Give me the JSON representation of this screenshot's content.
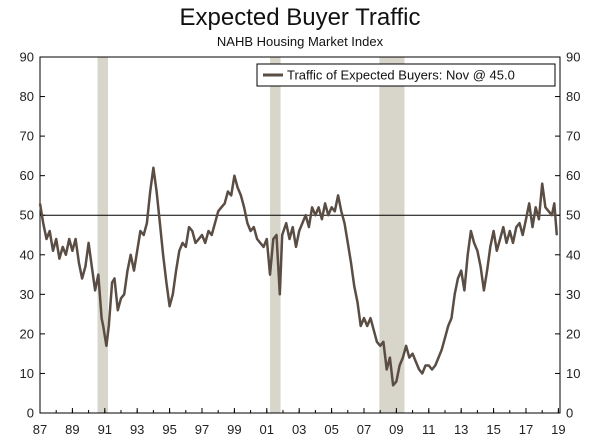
{
  "chart_data": {
    "type": "line",
    "title": "Expected Buyer Traffic",
    "subtitle": "NAHB Housing Market Index",
    "xlim": [
      1987.0,
      2019.1
    ],
    "ylim": [
      0,
      90
    ],
    "y_ticks": [
      0,
      10,
      20,
      30,
      40,
      50,
      60,
      70,
      80,
      90
    ],
    "x_ticks": [
      {
        "value": 1987,
        "label": "87"
      },
      {
        "value": 1989,
        "label": "89"
      },
      {
        "value": 1991,
        "label": "91"
      },
      {
        "value": 1993,
        "label": "93"
      },
      {
        "value": 1995,
        "label": "95"
      },
      {
        "value": 1997,
        "label": "97"
      },
      {
        "value": 1999,
        "label": "99"
      },
      {
        "value": 2001,
        "label": "01"
      },
      {
        "value": 2003,
        "label": "03"
      },
      {
        "value": 2005,
        "label": "05"
      },
      {
        "value": 2007,
        "label": "07"
      },
      {
        "value": 2009,
        "label": "09"
      },
      {
        "value": 2011,
        "label": "11"
      },
      {
        "value": 2013,
        "label": "13"
      },
      {
        "value": 2015,
        "label": "15"
      },
      {
        "value": 2017,
        "label": "17"
      },
      {
        "value": 2019,
        "label": "19"
      }
    ],
    "reference_line": 50,
    "recessions": [
      [
        1990.55,
        1991.2
      ],
      [
        2001.2,
        2001.85
      ],
      [
        2007.95,
        2009.5
      ]
    ],
    "legend": {
      "label": "Traffic of Expected Buyers: Nov @ 45.0",
      "position": "top-right"
    },
    "colors": {
      "line": "#5a4d44",
      "recession": "#d8d5cb",
      "reference": "#000000"
    },
    "series": [
      {
        "name": "Traffic of Expected Buyers: Nov @ 45.0",
        "points": [
          [
            1987.0,
            53
          ],
          [
            1987.2,
            48
          ],
          [
            1987.4,
            44
          ],
          [
            1987.6,
            46
          ],
          [
            1987.8,
            41
          ],
          [
            1988.0,
            44
          ],
          [
            1988.2,
            39
          ],
          [
            1988.4,
            42
          ],
          [
            1988.6,
            40
          ],
          [
            1988.8,
            44
          ],
          [
            1989.0,
            41
          ],
          [
            1989.2,
            44
          ],
          [
            1989.4,
            38
          ],
          [
            1989.6,
            34
          ],
          [
            1989.8,
            37
          ],
          [
            1990.0,
            43
          ],
          [
            1990.2,
            37
          ],
          [
            1990.4,
            31
          ],
          [
            1990.6,
            35
          ],
          [
            1990.8,
            24
          ],
          [
            1990.9,
            22
          ],
          [
            1991.1,
            17
          ],
          [
            1991.25,
            22
          ],
          [
            1991.45,
            33
          ],
          [
            1991.6,
            34
          ],
          [
            1991.8,
            26
          ],
          [
            1992.0,
            29
          ],
          [
            1992.2,
            30
          ],
          [
            1992.4,
            36
          ],
          [
            1992.6,
            40
          ],
          [
            1992.8,
            36
          ],
          [
            1993.0,
            41
          ],
          [
            1993.2,
            46
          ],
          [
            1993.4,
            45
          ],
          [
            1993.6,
            48
          ],
          [
            1993.8,
            56
          ],
          [
            1994.0,
            62
          ],
          [
            1994.2,
            56
          ],
          [
            1994.4,
            48
          ],
          [
            1994.6,
            40
          ],
          [
            1994.8,
            33
          ],
          [
            1995.0,
            27
          ],
          [
            1995.2,
            30
          ],
          [
            1995.4,
            36
          ],
          [
            1995.6,
            41
          ],
          [
            1995.8,
            43
          ],
          [
            1996.0,
            42
          ],
          [
            1996.2,
            47
          ],
          [
            1996.4,
            46
          ],
          [
            1996.6,
            43
          ],
          [
            1996.8,
            44
          ],
          [
            1997.0,
            45
          ],
          [
            1997.2,
            43
          ],
          [
            1997.4,
            46
          ],
          [
            1997.6,
            45
          ],
          [
            1997.8,
            48
          ],
          [
            1998.0,
            51
          ],
          [
            1998.2,
            52
          ],
          [
            1998.4,
            53
          ],
          [
            1998.6,
            56
          ],
          [
            1998.8,
            55
          ],
          [
            1999.0,
            60
          ],
          [
            1999.2,
            57
          ],
          [
            1999.4,
            55
          ],
          [
            1999.6,
            52
          ],
          [
            1999.8,
            48
          ],
          [
            2000.0,
            46
          ],
          [
            2000.2,
            47
          ],
          [
            2000.4,
            44
          ],
          [
            2000.6,
            43
          ],
          [
            2000.8,
            42
          ],
          [
            2001.0,
            44
          ],
          [
            2001.2,
            35
          ],
          [
            2001.4,
            44
          ],
          [
            2001.6,
            45
          ],
          [
            2001.8,
            30
          ],
          [
            2001.95,
            45
          ],
          [
            2002.2,
            48
          ],
          [
            2002.4,
            44
          ],
          [
            2002.6,
            47
          ],
          [
            2002.8,
            42
          ],
          [
            2003.0,
            46
          ],
          [
            2003.2,
            48
          ],
          [
            2003.4,
            50
          ],
          [
            2003.6,
            47
          ],
          [
            2003.8,
            52
          ],
          [
            2004.0,
            50
          ],
          [
            2004.2,
            52
          ],
          [
            2004.4,
            49
          ],
          [
            2004.6,
            53
          ],
          [
            2004.8,
            50
          ],
          [
            2005.0,
            52
          ],
          [
            2005.2,
            51
          ],
          [
            2005.4,
            55
          ],
          [
            2005.6,
            51
          ],
          [
            2005.8,
            48
          ],
          [
            2006.0,
            43
          ],
          [
            2006.2,
            38
          ],
          [
            2006.4,
            32
          ],
          [
            2006.6,
            28
          ],
          [
            2006.8,
            22
          ],
          [
            2007.0,
            24
          ],
          [
            2007.2,
            22
          ],
          [
            2007.4,
            24
          ],
          [
            2007.6,
            21
          ],
          [
            2007.8,
            18
          ],
          [
            2008.0,
            17
          ],
          [
            2008.2,
            18
          ],
          [
            2008.4,
            11
          ],
          [
            2008.6,
            14
          ],
          [
            2008.8,
            7
          ],
          [
            2009.0,
            8
          ],
          [
            2009.2,
            12
          ],
          [
            2009.4,
            14
          ],
          [
            2009.6,
            17
          ],
          [
            2009.8,
            14
          ],
          [
            2010.0,
            15
          ],
          [
            2010.2,
            13
          ],
          [
            2010.4,
            11
          ],
          [
            2010.6,
            10
          ],
          [
            2010.8,
            12
          ],
          [
            2011.0,
            12
          ],
          [
            2011.2,
            11
          ],
          [
            2011.4,
            12
          ],
          [
            2011.6,
            14
          ],
          [
            2011.8,
            16
          ],
          [
            2012.0,
            19
          ],
          [
            2012.2,
            22
          ],
          [
            2012.4,
            24
          ],
          [
            2012.6,
            30
          ],
          [
            2012.8,
            34
          ],
          [
            2013.0,
            36
          ],
          [
            2013.2,
            31
          ],
          [
            2013.4,
            40
          ],
          [
            2013.6,
            46
          ],
          [
            2013.8,
            43
          ],
          [
            2014.0,
            41
          ],
          [
            2014.2,
            37
          ],
          [
            2014.4,
            31
          ],
          [
            2014.6,
            36
          ],
          [
            2014.8,
            42
          ],
          [
            2015.0,
            46
          ],
          [
            2015.2,
            41
          ],
          [
            2015.4,
            44
          ],
          [
            2015.6,
            47
          ],
          [
            2015.8,
            43
          ],
          [
            2016.0,
            46
          ],
          [
            2016.2,
            43
          ],
          [
            2016.4,
            47
          ],
          [
            2016.6,
            48
          ],
          [
            2016.8,
            45
          ],
          [
            2017.0,
            49
          ],
          [
            2017.2,
            53
          ],
          [
            2017.4,
            47
          ],
          [
            2017.6,
            52
          ],
          [
            2017.8,
            49
          ],
          [
            2018.0,
            58
          ],
          [
            2018.2,
            52
          ],
          [
            2018.4,
            51
          ],
          [
            2018.6,
            50
          ],
          [
            2018.75,
            53
          ],
          [
            2018.9,
            45
          ]
        ]
      }
    ]
  }
}
